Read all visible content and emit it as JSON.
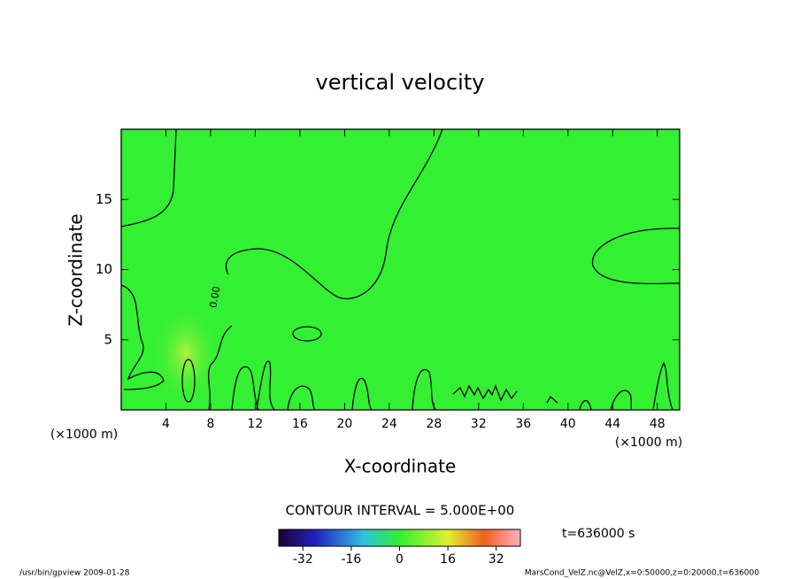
{
  "chart_data": {
    "type": "contour",
    "title": "vertical velocity",
    "xlabel": "X-coordinate",
    "ylabel": "Z-coordinate",
    "xlabel_unit": "(×1000 m)",
    "ylabel_unit": "(×1000 m)",
    "xlim": [
      0,
      50
    ],
    "ylim": [
      0,
      20
    ],
    "xticks": [
      4,
      8,
      12,
      16,
      20,
      24,
      28,
      32,
      36,
      40,
      44,
      48
    ],
    "yticks": [
      5,
      10,
      15
    ],
    "contour_levels": [
      {
        "value": 0,
        "label": "0.00"
      }
    ],
    "fill_color": "#33f033",
    "contour_interval": "CONTOUR INTERVAL = 5.000E+00",
    "time": "t=636000 s",
    "colorbar": {
      "lim": [
        -40,
        40
      ],
      "ticks": [
        -32,
        -16,
        0,
        16,
        32
      ]
    },
    "footer_left": "/usr/bin/gpview  2009-01-28",
    "footer_right": "MarsCond_VelZ.nc@VelZ,x=0:50000,z=0:20000,t=636000"
  }
}
